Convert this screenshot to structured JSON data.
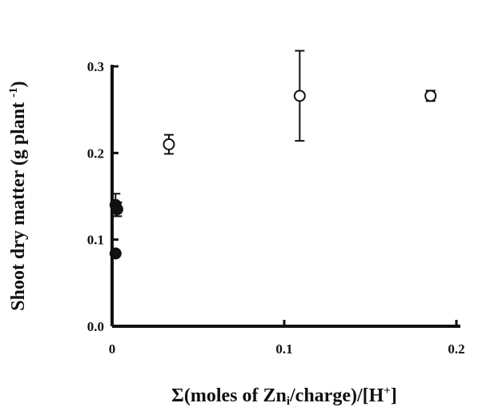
{
  "chart_data": {
    "type": "scatter",
    "x_label": [
      "Σ(moles of Zn",
      "i",
      "/charge)/[H",
      "+",
      "]"
    ],
    "y_label": [
      "Shoot dry matter (g plant ",
      "-1",
      ")"
    ],
    "xlim": [
      0,
      0.2
    ],
    "ylim": [
      0,
      0.3
    ],
    "xticks": [
      0,
      0.1,
      0.2
    ],
    "yticks": [
      {
        "value": 0,
        "label": "0.0"
      },
      0.1,
      0.2,
      0.3
    ],
    "series": [
      {
        "marker": "open",
        "color": "#111111",
        "x": [
          0.033,
          0.109,
          0.185
        ],
        "values": [
          0.21,
          0.266,
          0.266
        ],
        "errors": [
          0.011,
          0.052,
          0.006
        ]
      },
      {
        "marker": "filled",
        "color": "#111111",
        "x": [
          0.002,
          0.003,
          0.002
        ],
        "values": [
          0.14,
          0.135,
          0.084
        ],
        "errors": [
          0.013,
          0.008,
          0.003
        ]
      }
    ]
  }
}
